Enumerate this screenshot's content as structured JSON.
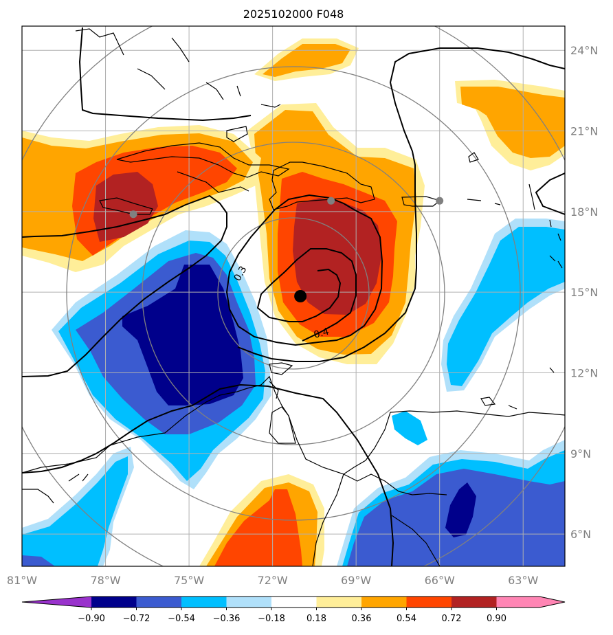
{
  "title": "2025102000 F048",
  "map": {
    "lon_range": [
      -81,
      -61.5
    ],
    "lat_range": [
      4.8,
      24.9
    ],
    "lon_ticks": [
      {
        "value": -81,
        "label": "81°W"
      },
      {
        "value": -78,
        "label": "78°W"
      },
      {
        "value": -75,
        "label": "75°W"
      },
      {
        "value": -72,
        "label": "72°W"
      },
      {
        "value": -69,
        "label": "69°W"
      },
      {
        "value": -66,
        "label": "66°W"
      },
      {
        "value": -63,
        "label": "63°W"
      }
    ],
    "lat_ticks": [
      {
        "value": 24,
        "label": "24°N"
      },
      {
        "value": 21,
        "label": "21°N"
      },
      {
        "value": 18,
        "label": "18°N"
      },
      {
        "value": 15,
        "label": "15°N"
      },
      {
        "value": 12,
        "label": "12°N"
      },
      {
        "value": 9,
        "label": "9°N"
      },
      {
        "value": 6,
        "label": "6°N"
      }
    ],
    "storm_center": {
      "lon": -71.0,
      "lat": 14.85
    },
    "stations": [
      {
        "lon": -77.0,
        "lat": 17.9
      },
      {
        "lon": -69.9,
        "lat": 18.4
      },
      {
        "lon": -66.0,
        "lat": 18.4
      }
    ],
    "contour_labels": [
      {
        "text": "0.3",
        "lon": -73.2,
        "lat": 15.7
      },
      {
        "text": "0.4",
        "lon": -69.8,
        "lat": 13.7
      }
    ]
  },
  "colorbar": {
    "levels": [
      "−0.90",
      "−0.72",
      "−0.54",
      "−0.36",
      "−0.18",
      "0.18",
      "0.36",
      "0.54",
      "0.72",
      "0.90"
    ],
    "colors": [
      "#9932cc",
      "#00008b",
      "#3b5bd0",
      "#00bfff",
      "#b0e0fa",
      "#ffffff",
      "#ffee99",
      "#ffa500",
      "#ff4500",
      "#b22222",
      "#ff85b4"
    ]
  }
}
